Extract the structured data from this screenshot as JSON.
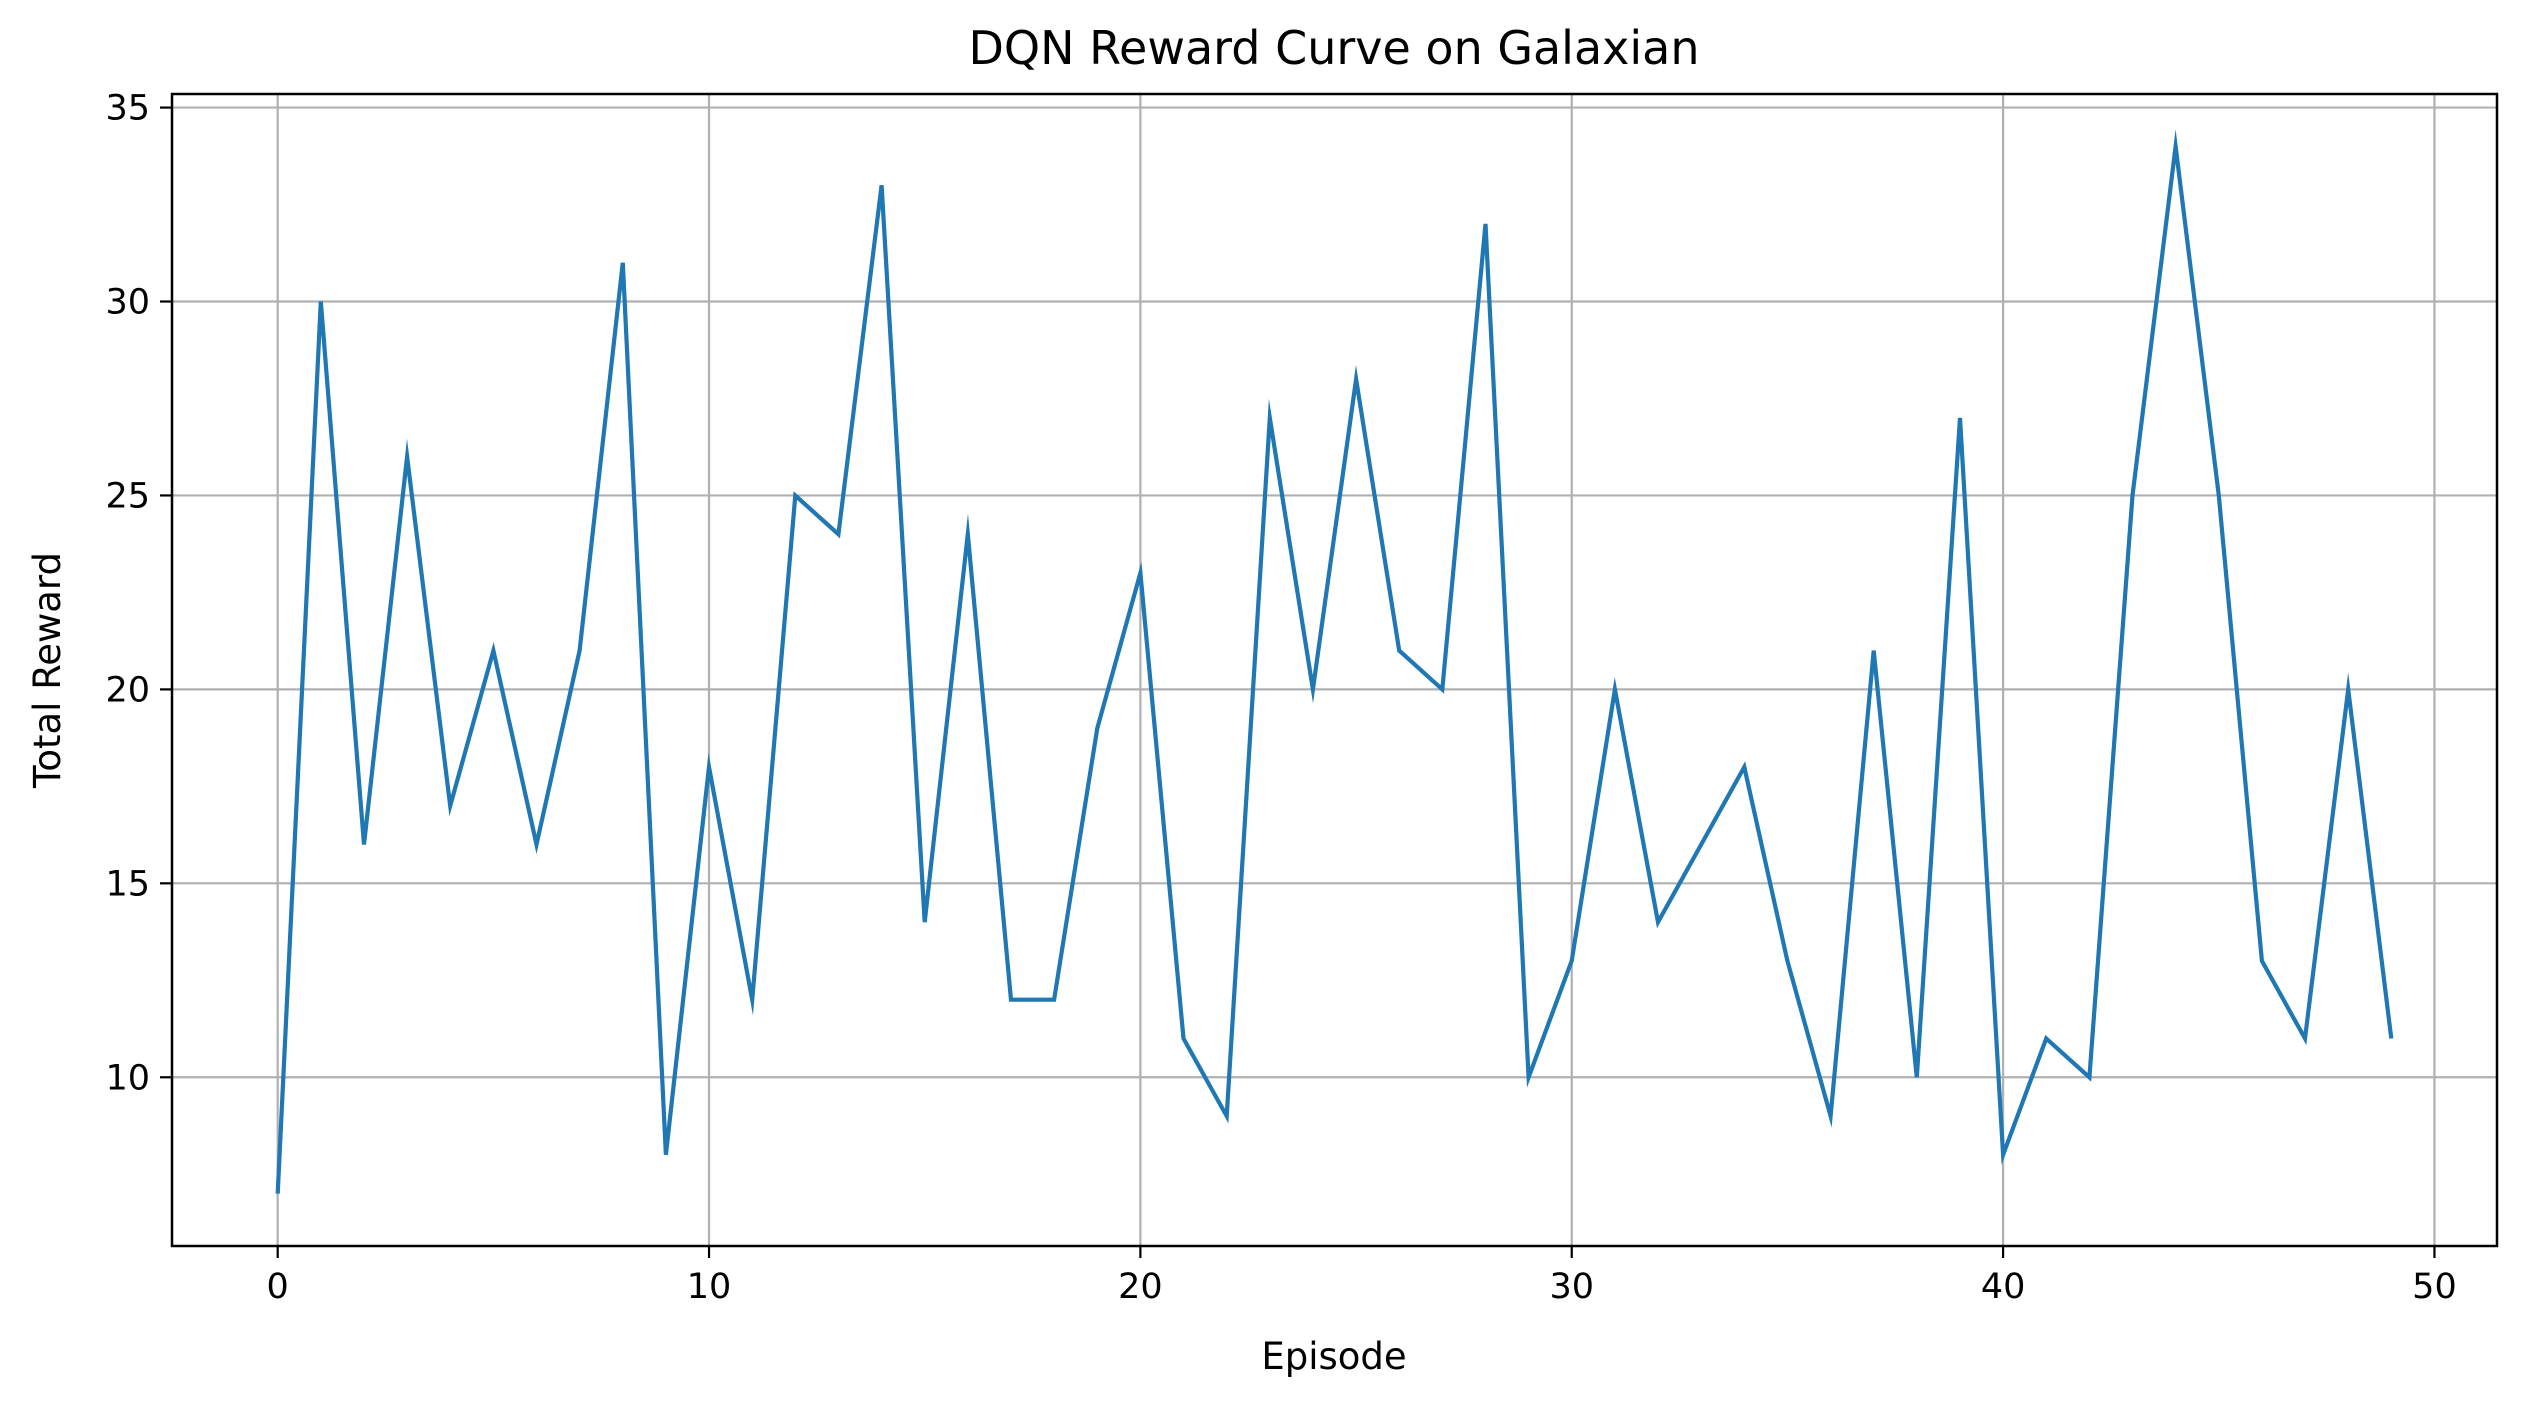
{
  "chart_data": {
    "type": "line",
    "title": "DQN Reward Curve on Galaxian",
    "xlabel": "Episode",
    "ylabel": "Total Reward",
    "xlim": [
      -2.45,
      51.45
    ],
    "ylim": [
      5.65,
      35.35
    ],
    "xticks": [
      0,
      10,
      20,
      30,
      40,
      50
    ],
    "yticks": [
      10,
      15,
      20,
      25,
      30,
      35
    ],
    "xtick_labels": [
      "0",
      "10",
      "20",
      "30",
      "40",
      "50"
    ],
    "ytick_labels": [
      "10",
      "15",
      "20",
      "25",
      "30",
      "35"
    ],
    "grid": true,
    "legend": "none",
    "series": [
      {
        "color": "#1f77b4",
        "x": [
          0,
          1,
          2,
          3,
          4,
          5,
          6,
          7,
          8,
          9,
          10,
          11,
          12,
          13,
          14,
          15,
          16,
          17,
          18,
          19,
          20,
          21,
          22,
          23,
          24,
          25,
          26,
          27,
          28,
          29,
          30,
          31,
          32,
          33,
          34,
          35,
          36,
          37,
          38,
          39,
          40,
          41,
          42,
          43,
          44,
          45,
          46,
          47,
          48,
          49
        ],
        "values": [
          7,
          30,
          16,
          26,
          17,
          21,
          16,
          21,
          31,
          8,
          18,
          12,
          25,
          24,
          33,
          14,
          24,
          12,
          12,
          19,
          23,
          11,
          9,
          27,
          20,
          28,
          21,
          20,
          32,
          10,
          13,
          20,
          14,
          16,
          18,
          13,
          9,
          21,
          10,
          27,
          8,
          11,
          10,
          25,
          34,
          25,
          13,
          11,
          20,
          11
        ]
      }
    ]
  }
}
